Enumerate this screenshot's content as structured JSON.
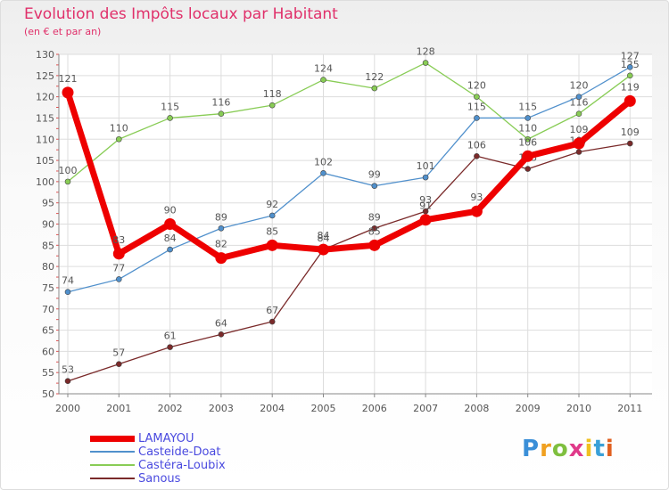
{
  "chart_data": {
    "type": "line",
    "title": "Evolution des Impôts locaux par Habitant",
    "subtitle": "(en € et par an)",
    "xlabel": "",
    "ylabel": "",
    "ylim": [
      50,
      130
    ],
    "y_ticks": [
      50,
      55,
      60,
      65,
      70,
      75,
      80,
      85,
      90,
      95,
      100,
      105,
      110,
      115,
      120,
      125,
      130
    ],
    "categories": [
      "2000",
      "2001",
      "2002",
      "2003",
      "2004",
      "2005",
      "2006",
      "2007",
      "2008",
      "2009",
      "2010",
      "2011"
    ],
    "series": [
      {
        "name": "Sanous",
        "color": "#7a2a2a",
        "values": [
          53,
          57,
          61,
          64,
          67,
          84,
          89,
          93,
          106,
          103,
          107,
          109
        ]
      },
      {
        "name": "Castéra-Loubix",
        "color": "#88cc55",
        "values": [
          100,
          110,
          115,
          116,
          118,
          124,
          122,
          128,
          120,
          110,
          116,
          125
        ]
      },
      {
        "name": "Casteide-Doat",
        "color": "#5090cc",
        "values": [
          74,
          77,
          84,
          89,
          92,
          102,
          99,
          101,
          115,
          115,
          120,
          127
        ]
      },
      {
        "name": "LAMAYOU",
        "color": "#ee0000",
        "values": [
          121,
          83,
          90,
          82,
          85,
          84,
          85,
          91,
          93,
          106,
          109,
          119
        ]
      }
    ],
    "legend": [
      "LAMAYOU",
      "Casteide-Doat",
      "Castéra-Loubix",
      "Sanous"
    ],
    "legend_position": "bottom-left"
  },
  "brand": {
    "letters": [
      "P",
      "r",
      "o",
      "x",
      "i",
      "t",
      "i"
    ],
    "colors": [
      "#3a8fd8",
      "#f0a020",
      "#7fbf3f",
      "#e03a8a",
      "#f0c020",
      "#3aa0d8",
      "#e06020"
    ]
  }
}
